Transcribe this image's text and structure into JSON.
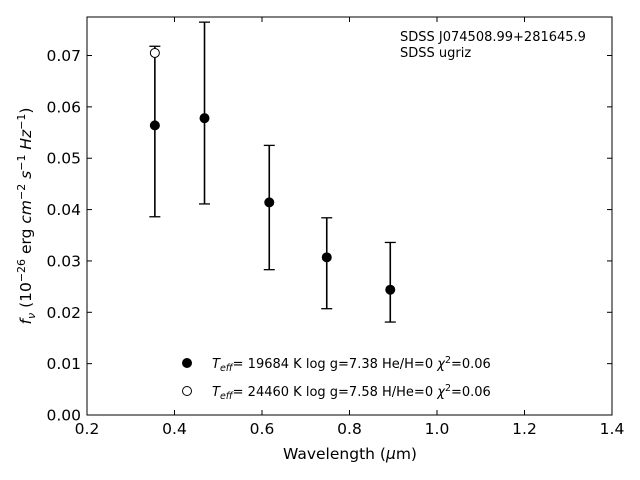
{
  "chart_data": {
    "type": "scatter",
    "xlabel": "Wavelength (μm)",
    "ylabel": "f_ν (10^-26 erg cm^-2 s^-1 Hz^-1)",
    "xlim": [
      0.2,
      1.4
    ],
    "ylim": [
      0.0,
      0.0775
    ],
    "x_ticks": [
      "0.2",
      "0.4",
      "0.6",
      "0.8",
      "1.0",
      "1.2",
      "1.4"
    ],
    "y_ticks": [
      "0.00",
      "0.01",
      "0.02",
      "0.03",
      "0.04",
      "0.05",
      "0.06",
      "0.07"
    ],
    "grid": false,
    "annotations": [
      "SDSS J074508.99+281645.9",
      "SDSS ugriz"
    ],
    "legend_position": "bottom-center",
    "observed": {
      "x": [
        0.3551,
        0.4686,
        0.6166,
        0.748,
        0.8932
      ],
      "y": [
        0.0564,
        0.0578,
        0.0414,
        0.0307,
        0.0244
      ],
      "yerr_low": [
        0.0386,
        0.0411,
        0.0283,
        0.0207,
        0.0181
      ],
      "yerr_high": [
        0.0718,
        0.0765,
        0.0525,
        0.0384,
        0.0336
      ]
    },
    "series": [
      {
        "name": "T_eff= 19684 K  log g=7.38  He/H=0  χ²=0.06",
        "marker": "filled-circle",
        "x": [
          0.3551,
          0.4686,
          0.6166,
          0.748,
          0.8932
        ],
        "y": [
          0.0564,
          0.0578,
          0.0414,
          0.0307,
          0.0244
        ]
      },
      {
        "name": "T_eff= 24460 K  log g=7.58  H/He=0  χ²=0.06",
        "marker": "open-circle",
        "x": [
          0.3551
        ],
        "y": [
          0.0705
        ]
      }
    ]
  },
  "legend": {
    "entries": [
      {
        "teff_symbol": "T",
        "teff_sub": "eff",
        "rest": "= 19684 K  log g=7.38  He/H=0  ",
        "chi": "χ",
        "chi_sup": "2",
        "chi_val": "=0.06"
      },
      {
        "teff_symbol": "T",
        "teff_sub": "eff",
        "rest": "= 24460 K  log g=7.58  H/He=0  ",
        "chi": "χ",
        "chi_sup": "2",
        "chi_val": "=0.06"
      }
    ]
  },
  "ylabel_parts": {
    "f": "f",
    "nu": "ν",
    "open": " (10",
    "e1": "−26",
    "erg": " erg ",
    "cm": "cm",
    "e2": "−2",
    "s": " s",
    "e3": "−1",
    "hz": " Hz",
    "e4": "−1",
    "close": ")"
  },
  "xlabel_parts": {
    "pre": "Wavelength (",
    "mu": "μ",
    "post": "m)"
  }
}
